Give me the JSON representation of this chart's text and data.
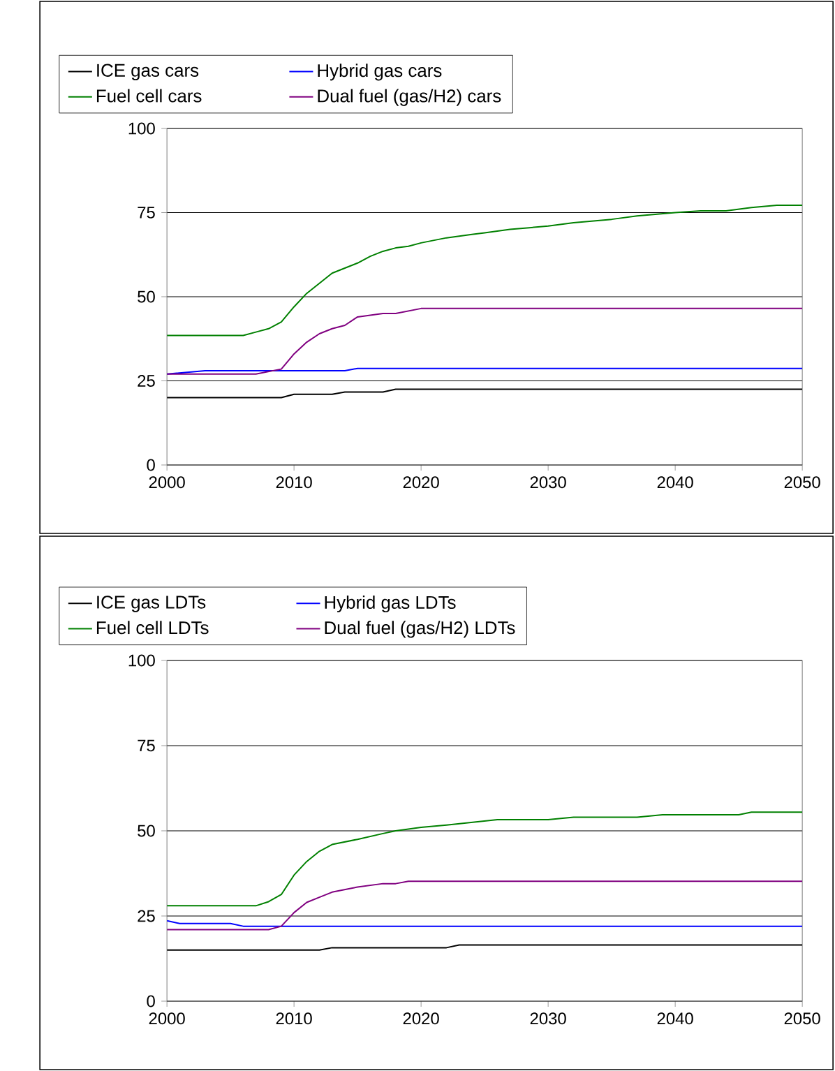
{
  "chart_data": [
    {
      "type": "line",
      "xlim": [
        2000,
        2050
      ],
      "ylim": [
        0,
        100
      ],
      "xticks": [
        2000,
        2010,
        2020,
        2030,
        2040,
        2050
      ],
      "yticks": [
        0,
        25,
        50,
        75,
        100
      ],
      "grid": "y",
      "legend": "top",
      "series": [
        {
          "name": "ICE gas cars",
          "color": "#000000",
          "x": [
            2000,
            2009,
            2010,
            2013,
            2014,
            2017,
            2018,
            2050
          ],
          "values": [
            20,
            20,
            21,
            21,
            21.7,
            21.7,
            22.5,
            22.5
          ]
        },
        {
          "name": "Hybrid gas cars",
          "color": "#0000ff",
          "x": [
            2000,
            2003,
            2014,
            2015,
            2050
          ],
          "values": [
            27,
            28,
            28,
            28.7,
            28.7
          ]
        },
        {
          "name": "Fuel cell cars",
          "color": "#008000",
          "x": [
            2000,
            2006,
            2007,
            2008,
            2009,
            2010,
            2011,
            2012,
            2013,
            2014,
            2015,
            2016,
            2017,
            2018,
            2019,
            2020,
            2022,
            2024,
            2025,
            2027,
            2030,
            2032,
            2035,
            2037,
            2040,
            2042,
            2044,
            2046,
            2048,
            2050
          ],
          "values": [
            38.5,
            38.5,
            39.5,
            40.5,
            42.5,
            47,
            51,
            54,
            57,
            58.5,
            60,
            62,
            63.5,
            64.5,
            65,
            66,
            67.5,
            68.5,
            69,
            70,
            71,
            72,
            73,
            74,
            75,
            75.5,
            75.5,
            76.5,
            77.2,
            77.2
          ]
        },
        {
          "name": "Dual fuel (gas/H2) cars",
          "color": "#800080",
          "x": [
            2000,
            2007,
            2009,
            2010,
            2011,
            2012,
            2013,
            2014,
            2015,
            2016,
            2017,
            2018,
            2020,
            2050
          ],
          "values": [
            27,
            27,
            28.5,
            33,
            36.5,
            39,
            40.5,
            41.5,
            44,
            44.5,
            45,
            45,
            46.5,
            46.5
          ]
        }
      ]
    },
    {
      "type": "line",
      "xlim": [
        2000,
        2050
      ],
      "ylim": [
        0,
        100
      ],
      "xticks": [
        2000,
        2010,
        2020,
        2030,
        2040,
        2050
      ],
      "yticks": [
        0,
        25,
        50,
        75,
        100
      ],
      "grid": "y",
      "legend": "top",
      "series": [
        {
          "name": "ICE gas LDTs",
          "color": "#000000",
          "x": [
            2000,
            2012,
            2013,
            2022,
            2023,
            2050
          ],
          "values": [
            15,
            15,
            15.7,
            15.7,
            16.5,
            16.5
          ]
        },
        {
          "name": "Hybrid gas LDTs",
          "color": "#0000ff",
          "x": [
            2000,
            2001,
            2005,
            2006,
            2050
          ],
          "values": [
            23.6,
            22.8,
            22.8,
            22,
            22
          ]
        },
        {
          "name": "Fuel cell LDTs",
          "color": "#008000",
          "x": [
            2000,
            2007,
            2008,
            2009,
            2010,
            2011,
            2012,
            2013,
            2015,
            2017,
            2018,
            2020,
            2022,
            2024,
            2026,
            2030,
            2032,
            2037,
            2039,
            2045,
            2046,
            2050
          ],
          "values": [
            28,
            28,
            29.2,
            31.3,
            37,
            41,
            44,
            46,
            47.5,
            49.2,
            50,
            51,
            51.7,
            52.5,
            53.3,
            53.3,
            54,
            54,
            54.7,
            54.7,
            55.5,
            55.5
          ]
        },
        {
          "name": "Dual fuel (gas/H2) LDTs",
          "color": "#800080",
          "x": [
            2000,
            2008,
            2009,
            2010,
            2011,
            2012,
            2013,
            2015,
            2017,
            2018,
            2019,
            2050
          ],
          "values": [
            21,
            21,
            22,
            26,
            29,
            30.5,
            32,
            33.5,
            34.5,
            34.5,
            35.2,
            35.2
          ]
        }
      ]
    }
  ]
}
